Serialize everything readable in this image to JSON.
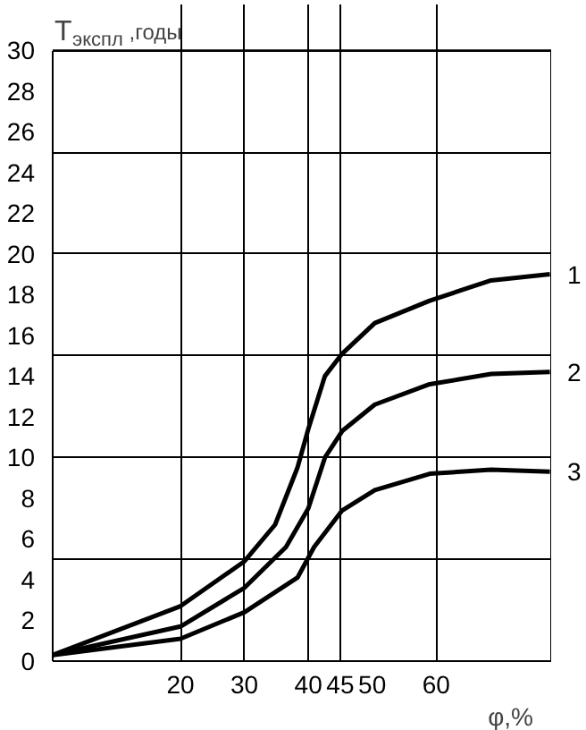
{
  "chart_data": {
    "type": "line",
    "ylabel": "T$_{экспл}$,годы",
    "xlabel": "φ,%",
    "xlim": [
      0,
      78
    ],
    "ylim": [
      0,
      30
    ],
    "xticks": [
      {
        "value": 20,
        "label": "20"
      },
      {
        "value": 30,
        "label": "30"
      },
      {
        "value": 40,
        "label": "40"
      },
      {
        "value": 45,
        "label": "45"
      },
      50,
      {
        "value": 60,
        "label": "60"
      }
    ],
    "yticks": [
      0,
      2,
      4,
      {
        "value": 5,
        "label": null
      },
      6,
      8,
      {
        "value": 10,
        "label": "10"
      },
      12,
      14,
      {
        "value": 15,
        "label": null
      },
      16,
      18,
      {
        "value": 20,
        "label": "20"
      },
      22,
      24,
      {
        "value": 25,
        "label": null
      },
      26,
      28,
      {
        "value": 30,
        "label": "30"
      }
    ],
    "grid": true,
    "line_style": "solid",
    "marker": "none",
    "series": [
      {
        "name": "1",
        "color": "#000000",
        "x": [
          0,
          20,
          30,
          34.8,
          38.3,
          40,
          42.6,
          45.3,
          50.4,
          59,
          68.6,
          77.8
        ],
        "values": [
          0.3,
          2.7,
          4.9,
          6.7,
          9.5,
          11.4,
          14.0,
          15.1,
          16.6,
          17.7,
          18.7,
          19.0
        ]
      },
      {
        "name": "2",
        "color": "#000000",
        "x": [
          0,
          20,
          30,
          36.5,
          40,
          42.6,
          45.3,
          50.4,
          59,
          68.6,
          77.8
        ],
        "values": [
          0.3,
          1.7,
          3.6,
          5.6,
          7.5,
          10.0,
          11.3,
          12.6,
          13.6,
          14.1,
          14.2
        ]
      },
      {
        "name": "3",
        "color": "#000000",
        "x": [
          0,
          20,
          30,
          38.3,
          40.9,
          45.3,
          50.4,
          59,
          68.6,
          77.8
        ],
        "values": [
          0.3,
          1.1,
          2.4,
          4.1,
          5.6,
          7.4,
          8.4,
          9.2,
          9.4,
          9.3
        ]
      }
    ]
  }
}
